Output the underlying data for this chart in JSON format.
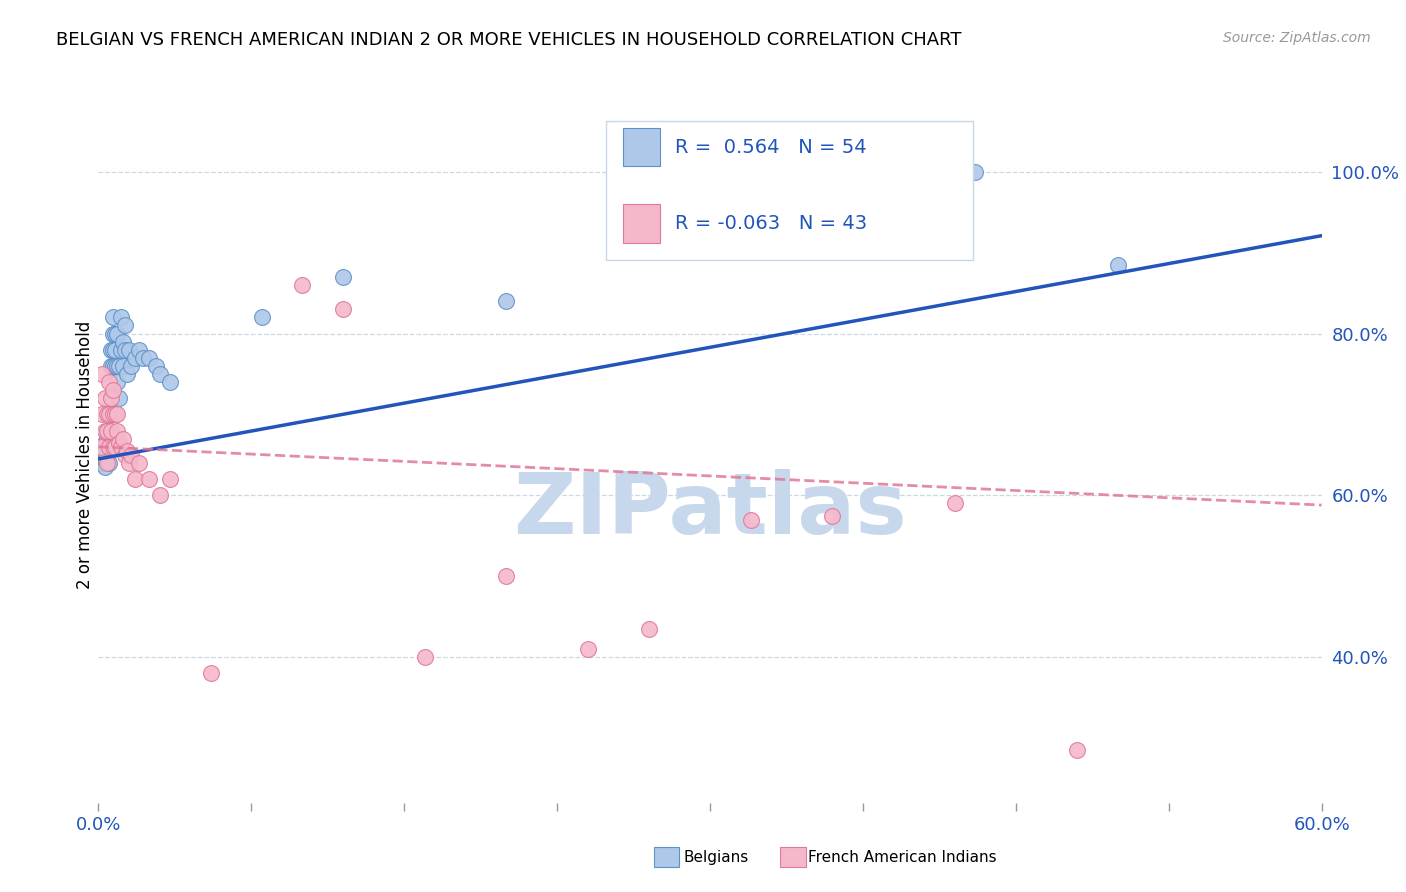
{
  "title": "BELGIAN VS FRENCH AMERICAN INDIAN 2 OR MORE VEHICLES IN HOUSEHOLD CORRELATION CHART",
  "source": "Source: ZipAtlas.com",
  "ylabel": "2 or more Vehicles in Household",
  "xlim": [
    0.0,
    0.6
  ],
  "ylim": [
    0.22,
    1.08
  ],
  "yticks": [
    0.4,
    0.6,
    0.8,
    1.0
  ],
  "ytick_labels": [
    "40.0%",
    "60.0%",
    "80.0%",
    "100.0%"
  ],
  "belgian_R": 0.564,
  "belgian_N": 54,
  "french_R": -0.063,
  "french_N": 43,
  "belgian_color": "#adc8e8",
  "belgian_edge": "#6090c8",
  "french_color": "#f5b8cb",
  "french_edge": "#e07898",
  "line_blue": "#2255bb",
  "line_pink": "#e07898",
  "watermark": "ZIPatlas",
  "watermark_color": "#c8d8ec",
  "legend_border_color": "#c8d8e8",
  "belgian_x": [
    0.001,
    0.002,
    0.002,
    0.002,
    0.003,
    0.003,
    0.003,
    0.003,
    0.004,
    0.004,
    0.004,
    0.004,
    0.005,
    0.005,
    0.005,
    0.005,
    0.006,
    0.006,
    0.006,
    0.006,
    0.007,
    0.007,
    0.007,
    0.007,
    0.008,
    0.008,
    0.008,
    0.009,
    0.009,
    0.009,
    0.01,
    0.01,
    0.011,
    0.011,
    0.012,
    0.012,
    0.013,
    0.013,
    0.014,
    0.015,
    0.016,
    0.018,
    0.02,
    0.022,
    0.025,
    0.028,
    0.03,
    0.035,
    0.08,
    0.12,
    0.2,
    0.32,
    0.43,
    0.5
  ],
  "belgian_y": [
    0.645,
    0.64,
    0.65,
    0.66,
    0.635,
    0.645,
    0.655,
    0.665,
    0.66,
    0.67,
    0.68,
    0.65,
    0.64,
    0.66,
    0.68,
    0.7,
    0.7,
    0.72,
    0.76,
    0.78,
    0.76,
    0.78,
    0.8,
    0.82,
    0.76,
    0.78,
    0.8,
    0.74,
    0.76,
    0.8,
    0.72,
    0.76,
    0.78,
    0.82,
    0.76,
    0.79,
    0.78,
    0.81,
    0.75,
    0.78,
    0.76,
    0.77,
    0.78,
    0.77,
    0.77,
    0.76,
    0.75,
    0.74,
    0.82,
    0.87,
    0.84,
    1.0,
    1.0,
    0.885
  ],
  "french_x": [
    0.001,
    0.002,
    0.002,
    0.003,
    0.003,
    0.004,
    0.004,
    0.004,
    0.005,
    0.005,
    0.005,
    0.006,
    0.006,
    0.007,
    0.007,
    0.007,
    0.008,
    0.008,
    0.009,
    0.009,
    0.01,
    0.011,
    0.012,
    0.013,
    0.014,
    0.015,
    0.016,
    0.018,
    0.02,
    0.025,
    0.03,
    0.035,
    0.055,
    0.1,
    0.12,
    0.16,
    0.2,
    0.24,
    0.27,
    0.32,
    0.36,
    0.42,
    0.48
  ],
  "french_y": [
    0.66,
    0.7,
    0.75,
    0.68,
    0.72,
    0.64,
    0.68,
    0.7,
    0.66,
    0.7,
    0.74,
    0.68,
    0.72,
    0.66,
    0.7,
    0.73,
    0.66,
    0.7,
    0.68,
    0.7,
    0.665,
    0.66,
    0.67,
    0.65,
    0.655,
    0.64,
    0.65,
    0.62,
    0.64,
    0.62,
    0.6,
    0.62,
    0.38,
    0.86,
    0.83,
    0.4,
    0.5,
    0.41,
    0.435,
    0.57,
    0.575,
    0.59,
    0.285
  ]
}
